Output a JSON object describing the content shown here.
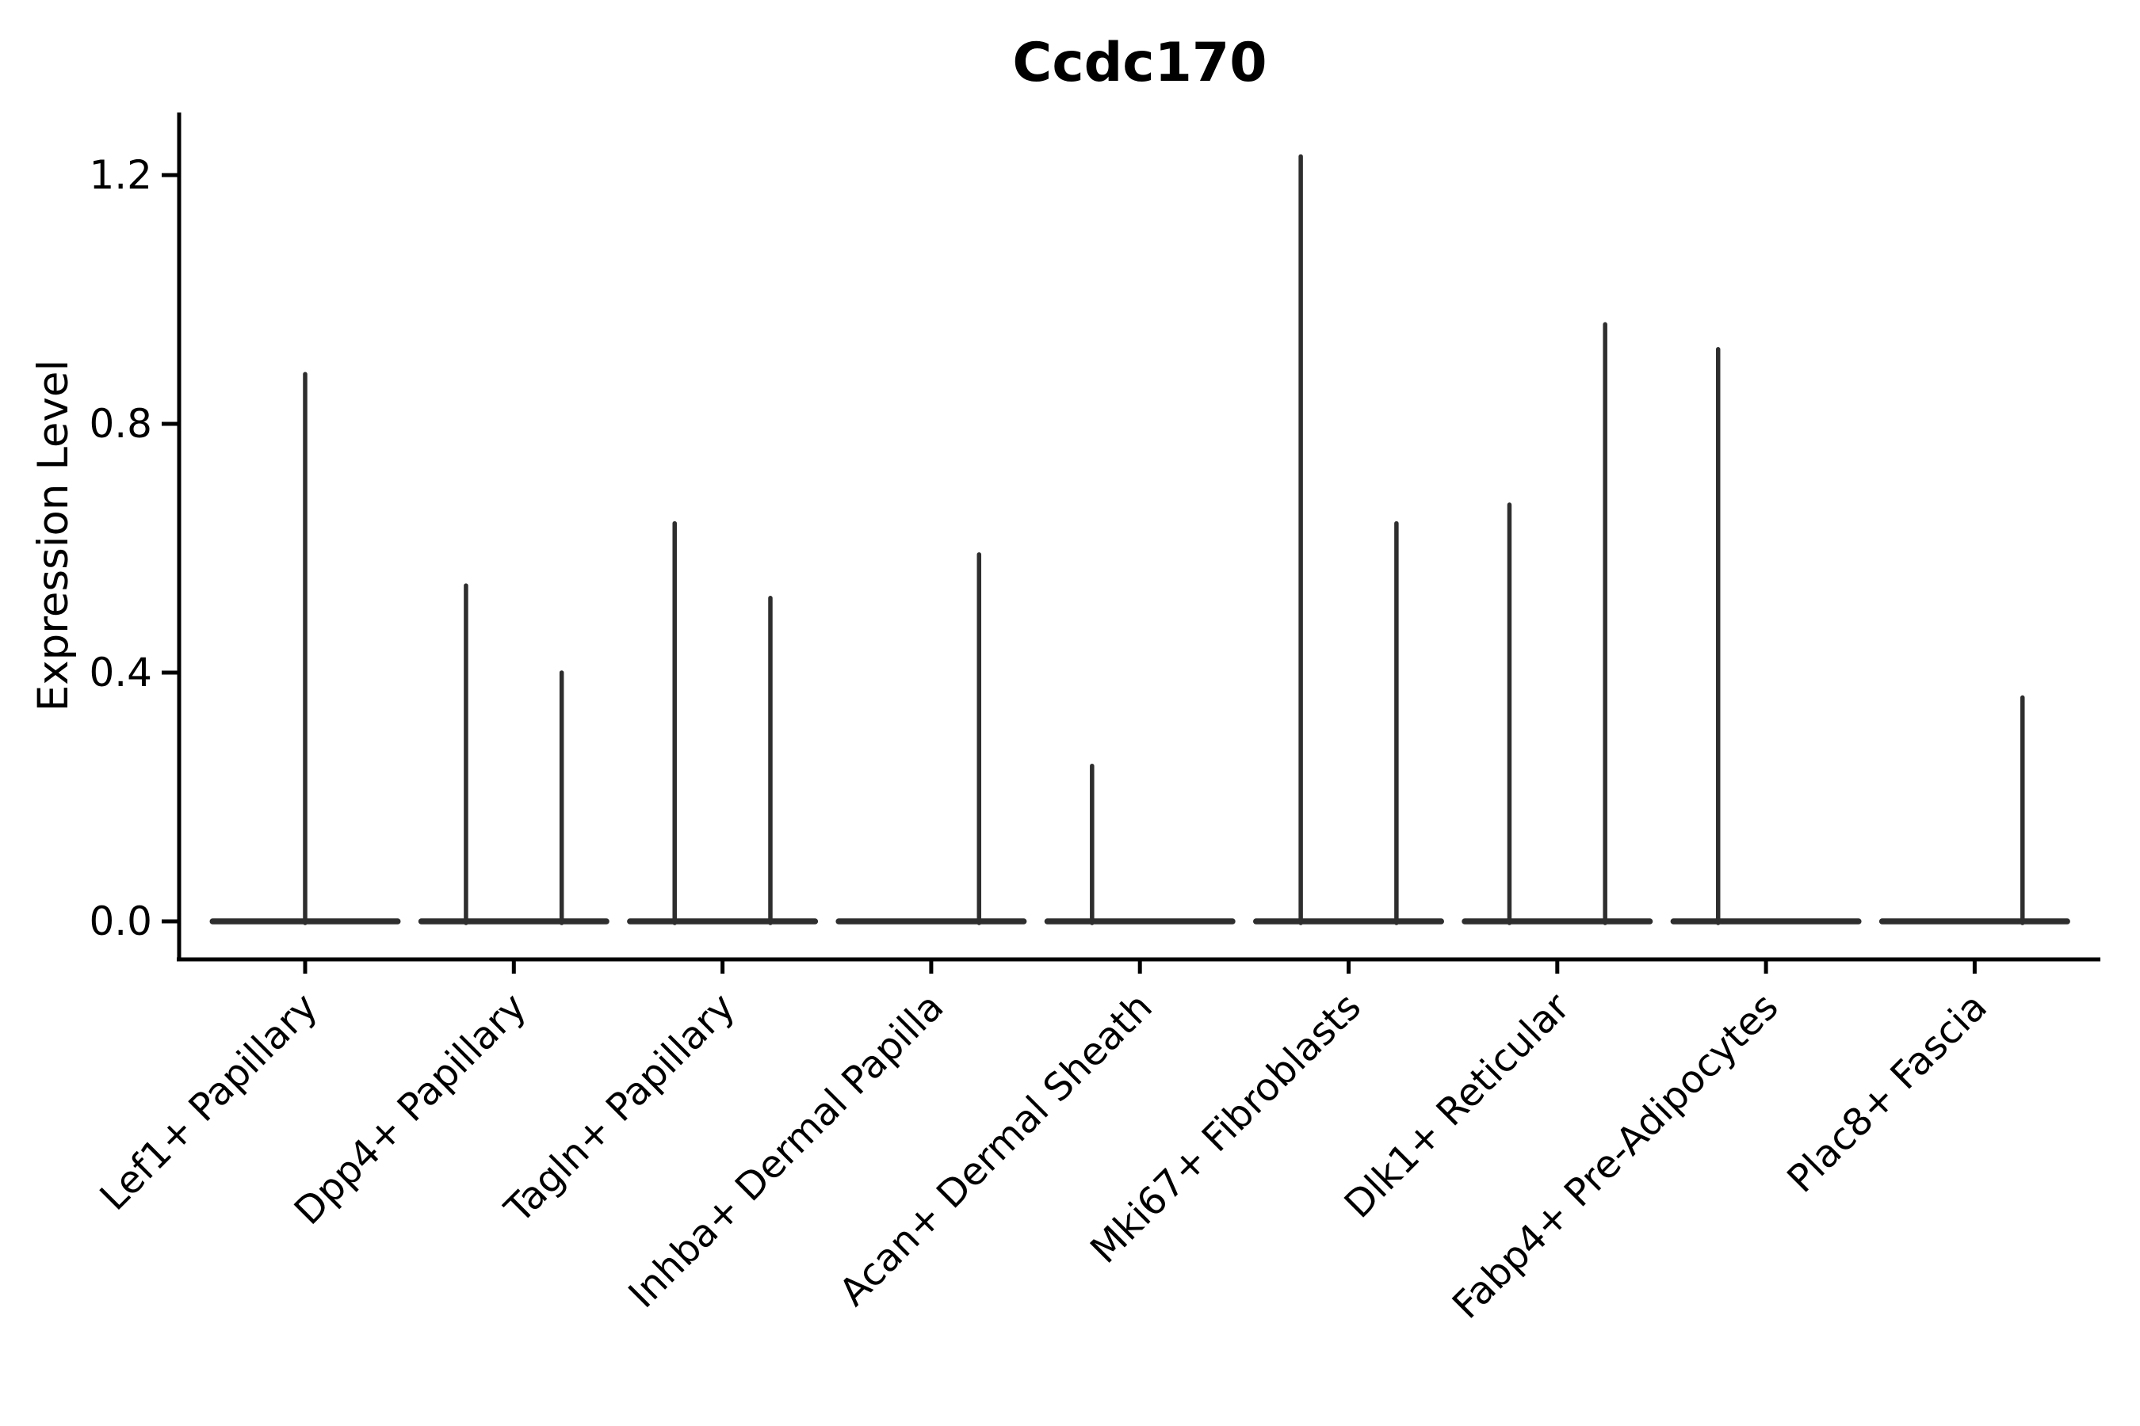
{
  "title": "Ccdc170",
  "y_axis": {
    "label": "Expression Level",
    "tick_labels": [
      "0.0",
      "0.4",
      "0.8",
      "1.2"
    ]
  },
  "x_axis": {
    "label": "",
    "tick_labels": [
      "Lef1+ Papillary",
      "Dpp4+ Papillary",
      "Tagln+ Papillary",
      "Inhba+ Dermal Papilla",
      "Acan+ Dermal Sheath",
      "Mki67+ Fibroblasts",
      "Dlk1+ Reticular",
      "Fabp4+ Pre-Adipocytes",
      "Plac8+ Fascia"
    ],
    "tick_label_rotation_deg": 45
  },
  "chart_data": {
    "type": "violin",
    "title": "Ccdc170",
    "xlabel": "",
    "ylabel": "Expression Level",
    "ylim": [
      0,
      1.3
    ],
    "grid": false,
    "legend": "none",
    "y_ticks": [
      0.0,
      0.4,
      0.8,
      1.2
    ],
    "y_tick_labels": [
      "0.0",
      "0.4",
      "0.8",
      "1.2"
    ],
    "categories": [
      "Lef1+ Papillary",
      "Dpp4+ Papillary",
      "Tagln+ Papillary",
      "Inhba+ Dermal Papilla",
      "Acan+ Dermal Sheath",
      "Mki67+ Fibroblasts",
      "Dlk1+ Reticular",
      "Fabp4+ Pre-Adipocytes",
      "Plac8+ Fascia"
    ],
    "description": "Flattened violins: bulk of cells at expression 0 (flat base line spanning each category slot) with thin density spikes reaching the max expression value; spike horizontal placement given as fraction of the category slot.",
    "violins": [
      {
        "category": "Lef1+ Papillary",
        "zero_base": true,
        "spikes": [
          {
            "slot_pos": 0.5,
            "max": 0.88
          }
        ]
      },
      {
        "category": "Dpp4+ Papillary",
        "zero_base": true,
        "spikes": [
          {
            "slot_pos": 0.25,
            "max": 0.54
          },
          {
            "slot_pos": 0.75,
            "max": 0.4
          }
        ]
      },
      {
        "category": "Tagln+ Papillary",
        "zero_base": true,
        "spikes": [
          {
            "slot_pos": 0.25,
            "max": 0.64
          },
          {
            "slot_pos": 0.75,
            "max": 0.52
          }
        ]
      },
      {
        "category": "Inhba+ Dermal Papilla",
        "zero_base": true,
        "spikes": [
          {
            "slot_pos": 0.75,
            "max": 0.59
          }
        ]
      },
      {
        "category": "Acan+ Dermal Sheath",
        "zero_base": true,
        "spikes": [
          {
            "slot_pos": 0.25,
            "max": 0.25
          }
        ]
      },
      {
        "category": "Mki67+ Fibroblasts",
        "zero_base": true,
        "spikes": [
          {
            "slot_pos": 0.25,
            "max": 1.23
          },
          {
            "slot_pos": 0.75,
            "max": 0.64
          }
        ]
      },
      {
        "category": "Dlk1+ Reticular",
        "zero_base": true,
        "spikes": [
          {
            "slot_pos": 0.25,
            "max": 0.67
          },
          {
            "slot_pos": 0.75,
            "max": 0.96
          }
        ]
      },
      {
        "category": "Fabp4+ Pre-Adipocytes",
        "zero_base": true,
        "spikes": [
          {
            "slot_pos": 0.25,
            "max": 0.92
          }
        ]
      },
      {
        "category": "Plac8+ Fascia",
        "zero_base": true,
        "spikes": [
          {
            "slot_pos": 0.75,
            "max": 0.36
          }
        ]
      }
    ],
    "colors": {
      "violin_line": "#2e2e2e",
      "axis": "#000000",
      "text": "#000000",
      "background": "#ffffff"
    }
  }
}
